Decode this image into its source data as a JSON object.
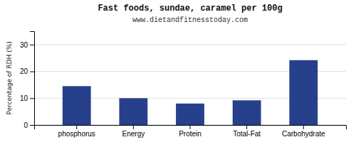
{
  "chart_data": {
    "type": "bar",
    "title": "Fast foods, sundae, caramel per 100g",
    "subtitle": "www.dietandfitnesstoday.com",
    "categories": [
      "phosphorus",
      "Energy",
      "Protein",
      "Total-Fat",
      "Carbohydrate"
    ],
    "values": [
      14.5,
      10.0,
      8.0,
      9.2,
      24.2
    ],
    "color": "#27408b",
    "ylabel": "Percentage of RDH (%)",
    "ylim": [
      0,
      35
    ],
    "yticks": [
      0,
      10,
      20,
      30
    ],
    "grid": true
  }
}
